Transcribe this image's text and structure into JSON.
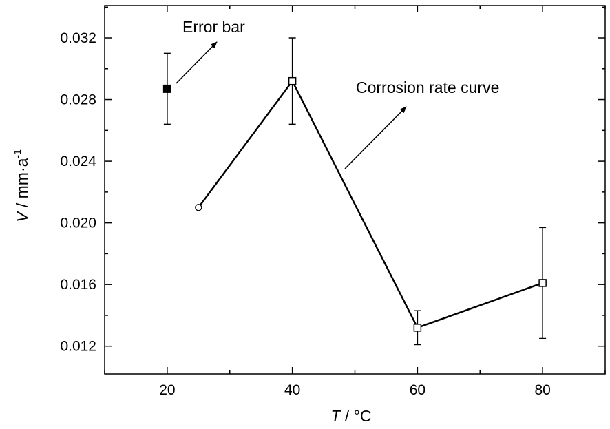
{
  "chart_data": {
    "type": "line",
    "title": "",
    "xlabel": {
      "symbol": "T",
      "unit": " / °C"
    },
    "ylabel": {
      "symbol": "V",
      "unit": " / mm·a",
      "unit_exponent": "-1"
    },
    "xlim": [
      10,
      90
    ],
    "ylim": [
      0.0102,
      0.0341
    ],
    "x_ticks": [
      20,
      40,
      60,
      80
    ],
    "x_tick_labels": [
      "20",
      "40",
      "60",
      "80"
    ],
    "y_ticks": [
      0.012,
      0.016,
      0.02,
      0.024,
      0.028,
      0.032
    ],
    "y_tick_labels": [
      "0.012",
      "0.016",
      "0.020",
      "0.024",
      "0.028",
      "0.032"
    ],
    "grid": false,
    "series": [
      {
        "x": [
          25,
          40,
          60,
          80
        ],
        "y": [
          0.021,
          0.0292,
          0.0132,
          0.0161
        ],
        "error": [
          null,
          0.0028,
          0.0011,
          0.0036
        ],
        "markers": [
          "open-circle",
          "open-square",
          "open-square",
          "open-square"
        ]
      }
    ],
    "legend_sample": {
      "x": 20,
      "y": 0.0287,
      "error_low": 0.0264,
      "error_high": 0.031,
      "marker": "filled-square"
    },
    "annotations": [
      {
        "text": "Error bar"
      },
      {
        "text": "Corrosion rate curve"
      }
    ]
  }
}
